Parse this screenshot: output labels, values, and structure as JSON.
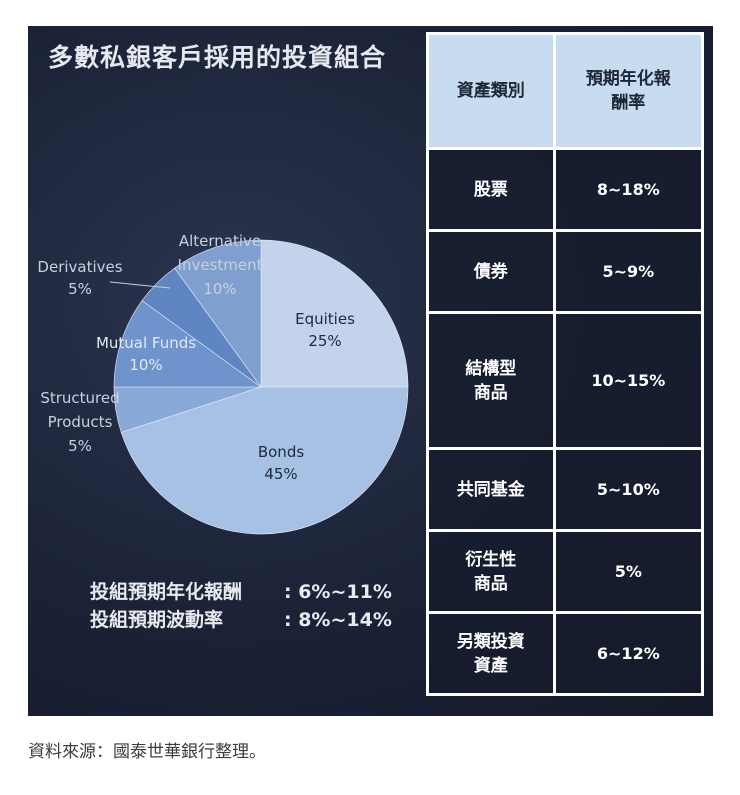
{
  "title": "多數私銀客戶採用的投資組合",
  "chart_data": {
    "type": "pie",
    "slices": [
      {
        "label": "Equities",
        "value": 25,
        "pct": "25%",
        "color": "#c3d3eb"
      },
      {
        "label": "Bonds",
        "value": 45,
        "pct": "45%",
        "color": "#a7c1e4"
      },
      {
        "label": "Structured Products",
        "value": 5,
        "pct": "5%",
        "color": "#89a9d8"
      },
      {
        "label": "Mutual Funds",
        "value": 10,
        "pct": "10%",
        "color": "#6f93cc"
      },
      {
        "label": "Derivatives",
        "value": 5,
        "pct": "5%",
        "color": "#5f85c2"
      },
      {
        "label": "Alternative Investment",
        "value": 10,
        "pct": "10%",
        "color": "#7e9fcf"
      }
    ]
  },
  "labels": {
    "equities": [
      "Equities",
      "25%"
    ],
    "bonds": [
      "Bonds",
      "45%"
    ],
    "structured": [
      "Structured",
      "Products",
      "5%"
    ],
    "mutual": [
      "Mutual Funds",
      "10%"
    ],
    "derivatives": [
      "Derivatives",
      "5%"
    ],
    "alternative": [
      "Alternative",
      "Investment",
      "10%"
    ]
  },
  "summary": {
    "return_label": "投組預期年化報酬",
    "return_value": ": 6%~11%",
    "vol_label": "投組預期波動率",
    "vol_value": ": 8%~14%"
  },
  "table": {
    "headers": [
      "資產類別",
      "預期年化報酬率"
    ],
    "rows": [
      {
        "asset": "股票",
        "rate": "8~18%"
      },
      {
        "asset": "債券",
        "rate": "5~9%"
      },
      {
        "asset": "結構型商品",
        "rate": "10~15%"
      },
      {
        "asset": "共同基金",
        "rate": "5~10%"
      },
      {
        "asset": "衍生性商品",
        "rate": "5%"
      },
      {
        "asset": "另類投資資產",
        "rate": "6~12%"
      }
    ]
  },
  "source": "資料來源：國泰世華銀行整理。"
}
